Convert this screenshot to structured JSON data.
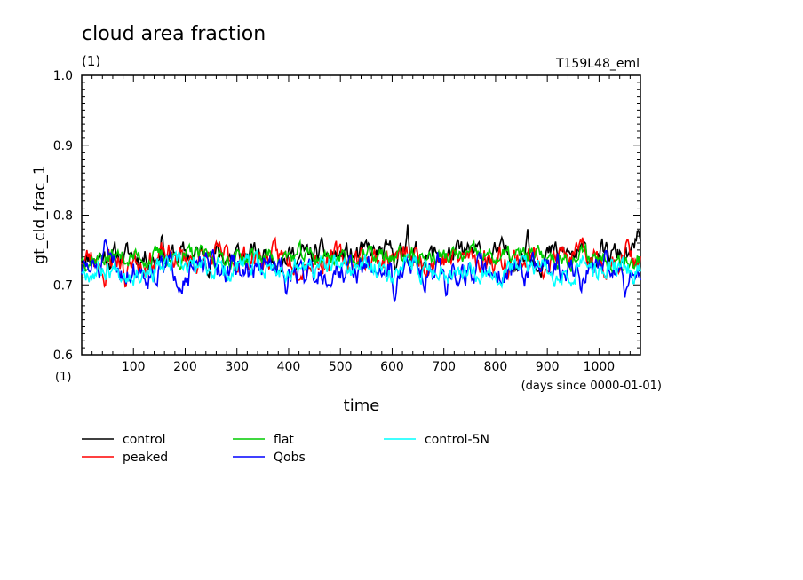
{
  "chart_data": {
    "type": "line",
    "title": "cloud area fraction",
    "units_label": "(1)",
    "run_label": "T159L48_eml",
    "xlabel": "time",
    "x_units_left": "(1)",
    "x_units_right": "(days since 0000-01-01)",
    "ylabel": "gt_cld_frac_1",
    "xlim": [
      0,
      1080
    ],
    "ylim": [
      0.6,
      1.0
    ],
    "x_ticks": [
      100,
      200,
      300,
      400,
      500,
      600,
      700,
      800,
      900,
      1000
    ],
    "y_ticks": [
      "0.6",
      "0.7",
      "0.8",
      "0.9",
      "1.0"
    ],
    "series": [
      {
        "name": "control",
        "color": "#000000",
        "mean": 0.742,
        "amp": 0.013,
        "seed": 11,
        "peaks": [
          [
            155,
            0.776
          ],
          [
            630,
            0.786
          ],
          [
            862,
            0.78
          ],
          [
            1075,
            0.784
          ]
        ]
      },
      {
        "name": "peaked",
        "color": "#ff0000",
        "mean": 0.738,
        "amp": 0.014,
        "seed": 23,
        "peaks": [
          [
            45,
            0.69
          ],
          [
            85,
            0.69
          ],
          [
            1055,
            0.77
          ]
        ]
      },
      {
        "name": "flat",
        "color": "#00cc00",
        "mean": 0.74,
        "amp": 0.01,
        "seed": 37,
        "peaks": []
      },
      {
        "name": "Qobs",
        "color": "#0000ff",
        "mean": 0.722,
        "amp": 0.015,
        "seed": 51,
        "peaks": [
          [
            45,
            0.77
          ],
          [
            395,
            0.68
          ],
          [
            605,
            0.672
          ],
          [
            705,
            0.678
          ],
          [
            965,
            0.684
          ],
          [
            1050,
            0.682
          ]
        ]
      },
      {
        "name": "control-5N",
        "color": "#00ffff",
        "mean": 0.724,
        "amp": 0.012,
        "seed": 67,
        "peaks": []
      }
    ]
  }
}
